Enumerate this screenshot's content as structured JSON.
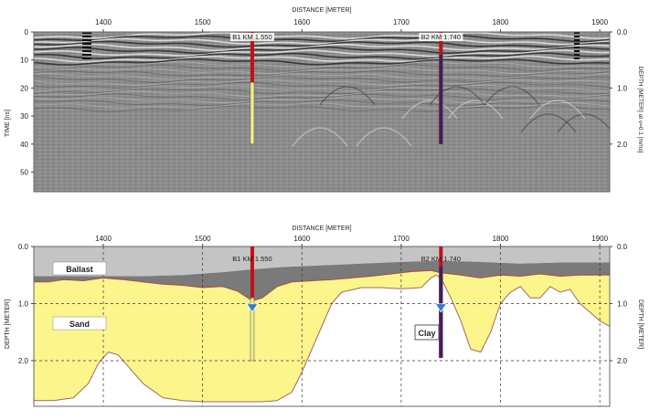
{
  "chart_data": [
    {
      "type": "radargram",
      "xlabel": "DISTANCE [METER]",
      "ylabel_left": "TIME [ns]",
      "ylabel_right": "DEPTH [METER] at v=0.1 [m/ns]",
      "x_ticks": [
        "1400",
        "1500",
        "1600",
        "1700",
        "1800",
        "1900"
      ],
      "x_tick_values": [
        1400,
        1500,
        1600,
        1700,
        1800,
        1900
      ],
      "xlim": [
        1330,
        1910
      ],
      "y_ticks_left": [
        "0",
        "10",
        "20",
        "30",
        "40",
        "50"
      ],
      "y_tick_values_left": [
        0,
        10,
        20,
        30,
        40,
        50
      ],
      "ylim_left": [
        0,
        57
      ],
      "y_ticks_right": [
        "0.0",
        "1.0",
        "2.0"
      ],
      "y_tick_values_right": [
        0.0,
        1.0,
        2.0
      ],
      "boreholes": [
        {
          "label": "B1 KM 1.550",
          "x": 1550,
          "t_top": 0,
          "t_transition": 18,
          "t_bottom": 40,
          "color_top": "#c0111a",
          "color_bottom": "#f2ee8a"
        },
        {
          "label": "B2 KM 1.740",
          "x": 1740,
          "t_top": 0,
          "t_transition": 8,
          "t_bottom": 40,
          "color_top": "#c0111a",
          "color_bottom": "#4a1a5c"
        }
      ]
    },
    {
      "type": "area",
      "xlabel": "DISTANCE [METER]",
      "ylabel_left": "DEPTH [METER]",
      "ylabel_right": "DEPTH [METER]",
      "x_ticks": [
        "1400",
        "1500",
        "1600",
        "1700",
        "1800",
        "1900"
      ],
      "x_tick_values": [
        1400,
        1500,
        1600,
        1700,
        1800,
        1900
      ],
      "xlim": [
        1330,
        1910
      ],
      "y_ticks_left": [
        "0.0",
        "1.0",
        "2.0"
      ],
      "y_ticks_right": [
        "0.0",
        "1.0",
        "2.0"
      ],
      "y_tick_values": [
        0.0,
        1.0,
        2.0
      ],
      "ylim": [
        0,
        2.8
      ],
      "grid": true,
      "layers": [
        {
          "name": "Ballast",
          "color": "#c0c0c0"
        },
        {
          "name": "Sand",
          "color": "#fbf58c"
        },
        {
          "name": "Clay",
          "color": "#ffffff"
        }
      ],
      "ballast_base": {
        "x": [
          1330,
          1360,
          1400,
          1440,
          1480,
          1520,
          1550,
          1580,
          1620,
          1660,
          1700,
          1740,
          1780,
          1820,
          1860,
          1910
        ],
        "y": [
          0.52,
          0.52,
          0.52,
          0.52,
          0.5,
          0.45,
          0.4,
          0.36,
          0.33,
          0.3,
          0.27,
          0.25,
          0.27,
          0.3,
          0.28,
          0.28
        ]
      },
      "sand_top": {
        "x": [
          1330,
          1345,
          1360,
          1380,
          1400,
          1420,
          1440,
          1460,
          1480,
          1500,
          1520,
          1535,
          1550,
          1560,
          1575,
          1590,
          1610,
          1630,
          1650,
          1670,
          1690,
          1710,
          1730,
          1740,
          1760,
          1780,
          1800,
          1820,
          1840,
          1860,
          1880,
          1910
        ],
        "y": [
          0.62,
          0.62,
          0.58,
          0.6,
          0.55,
          0.58,
          0.62,
          0.66,
          0.68,
          0.72,
          0.7,
          0.78,
          0.95,
          0.9,
          0.7,
          0.62,
          0.6,
          0.58,
          0.55,
          0.52,
          0.48,
          0.44,
          0.42,
          0.46,
          0.5,
          0.55,
          0.5,
          0.52,
          0.48,
          0.52,
          0.5,
          0.5
        ]
      },
      "sand_base": {
        "x": [
          1330,
          1350,
          1370,
          1385,
          1395,
          1405,
          1415,
          1425,
          1440,
          1460,
          1480,
          1500,
          1520,
          1540,
          1560,
          1575,
          1590,
          1600,
          1610,
          1620,
          1630,
          1640,
          1660,
          1680,
          1700,
          1720,
          1730,
          1735,
          1740,
          1750,
          1760,
          1770,
          1780,
          1790,
          1800,
          1810,
          1820,
          1830,
          1840,
          1850,
          1860,
          1870,
          1880,
          1890,
          1900,
          1910
        ],
        "y": [
          2.7,
          2.7,
          2.65,
          2.4,
          2.05,
          1.85,
          1.9,
          2.1,
          2.4,
          2.65,
          2.7,
          2.72,
          2.72,
          2.72,
          2.72,
          2.7,
          2.55,
          2.2,
          1.8,
          1.4,
          1.0,
          0.8,
          0.72,
          0.72,
          0.74,
          0.72,
          0.55,
          0.5,
          0.55,
          0.9,
          1.3,
          1.8,
          1.85,
          1.5,
          1.0,
          0.8,
          0.7,
          0.9,
          0.9,
          0.7,
          0.8,
          0.75,
          1.0,
          1.15,
          1.3,
          1.4
        ]
      },
      "boreholes": [
        {
          "label": "B1 KM 1.550",
          "x": 1550,
          "d_top": 0.0,
          "d_transition": 0.9,
          "d_bottom": 2.0,
          "water_level": 1.1,
          "color_top": "#c0111a",
          "color_bottom": "#f2ee8a"
        },
        {
          "label": "B2 KM 1.740",
          "x": 1740,
          "d_top": 0.0,
          "d_transition": 0.35,
          "d_bottom": 1.95,
          "water_level": 1.1,
          "color_top": "#c0111a",
          "color_bottom": "#4a1a5c"
        }
      ],
      "annotations": [
        "Ballast",
        "Sand",
        "Clay"
      ]
    }
  ]
}
